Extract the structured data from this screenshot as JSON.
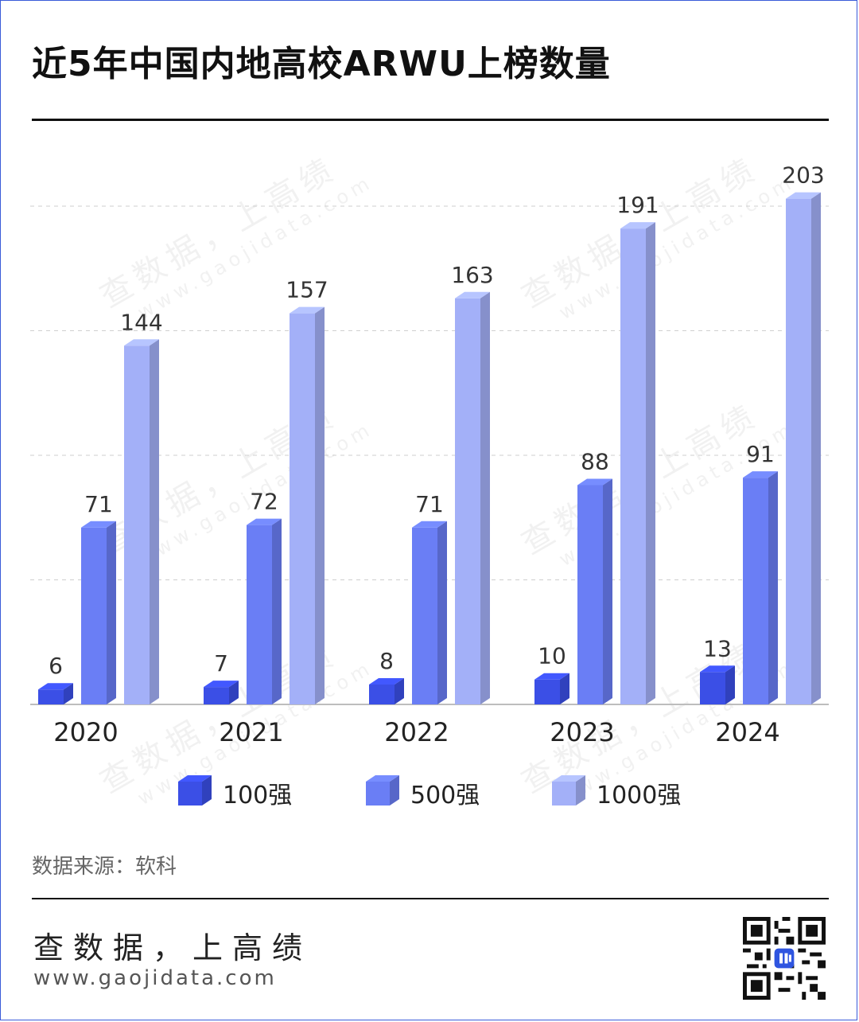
{
  "title": "近5年中国内地高校ARWU上榜数量",
  "source_text": "数据来源：软科",
  "brand": {
    "slogan": "查数据，上高绩",
    "site": "www.gaojidata.com"
  },
  "watermark": {
    "text": "查数据，上高绩",
    "url": "www.gaojidata.com"
  },
  "colors": {
    "series_100": "#3b4fe6",
    "series_500": "#6a7ef5",
    "series_1000": "#a3b0f8",
    "rule": "#111111"
  },
  "qr": {
    "icon": "qr-code-icon"
  },
  "chart_data": {
    "type": "bar",
    "title": "近5年中国内地高校ARWU上榜数量",
    "categories": [
      "2020",
      "2021",
      "2022",
      "2023",
      "2024"
    ],
    "series": [
      {
        "name": "100强",
        "values": [
          6,
          7,
          8,
          10,
          13
        ]
      },
      {
        "name": "500强",
        "values": [
          71,
          72,
          71,
          88,
          91
        ]
      },
      {
        "name": "1000强",
        "values": [
          144,
          157,
          163,
          191,
          203
        ]
      }
    ],
    "ylim": [
      0,
      200
    ],
    "grid": true,
    "legend": "bottom",
    "style": "3d-bar",
    "data_labels": true
  }
}
